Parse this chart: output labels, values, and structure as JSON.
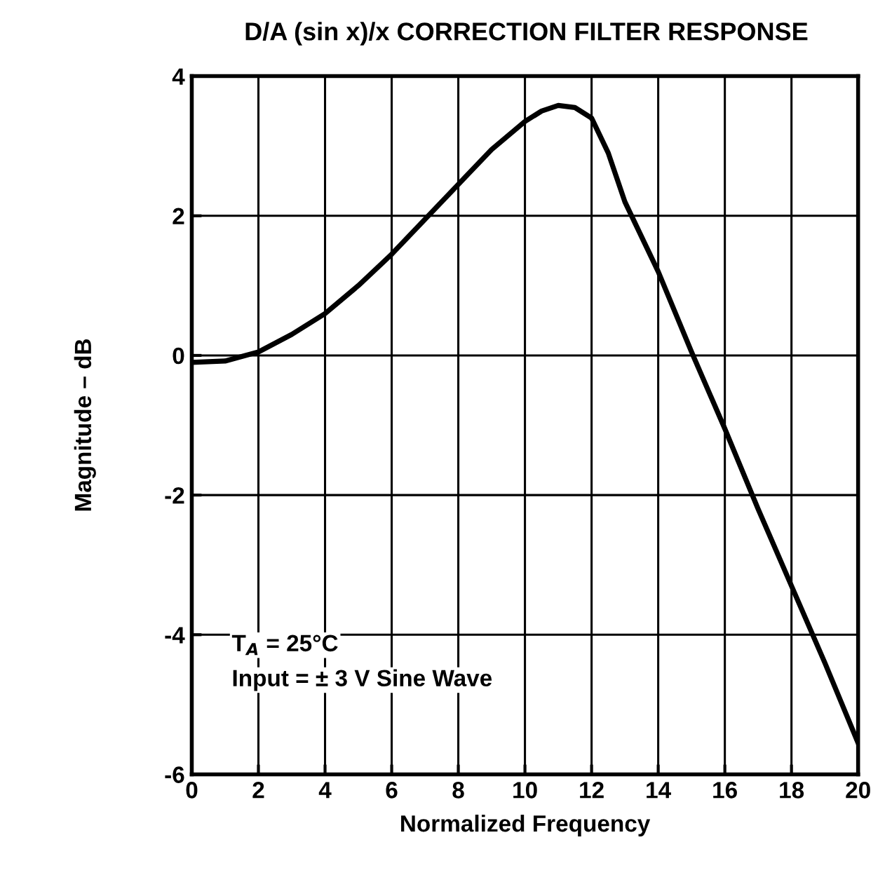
{
  "chart_data": {
    "type": "line",
    "title": "D/A (sin x)/x CORRECTION FILTER RESPONSE",
    "xlabel": "Normalized Frequency",
    "ylabel": "Magnitude – dB",
    "x": [
      0,
      1,
      2,
      3,
      4,
      5,
      6,
      7,
      8,
      9,
      10,
      10.5,
      11,
      11.5,
      12,
      12.5,
      13,
      14,
      15,
      16,
      17,
      18,
      19,
      20
    ],
    "series": [
      {
        "color": "#000000",
        "values": [
          -0.1,
          -0.08,
          0.05,
          0.3,
          0.6,
          1.0,
          1.45,
          1.95,
          2.45,
          2.95,
          3.35,
          3.5,
          3.58,
          3.55,
          3.4,
          2.9,
          2.2,
          1.2,
          0.05,
          -1.05,
          -2.2,
          -3.3,
          -4.4,
          -5.55
        ]
      }
    ],
    "xlim": [
      0,
      20
    ],
    "xticks": [
      0,
      2,
      4,
      6,
      8,
      10,
      12,
      14,
      16,
      18,
      20
    ],
    "ylim": [
      -6,
      4
    ],
    "yticks": [
      -6,
      -4,
      -2,
      0,
      2,
      4
    ],
    "grid": true,
    "marker": "none",
    "line_style": "solid",
    "annotations": [
      "T$_{A}$ = 25°C",
      "Input = ± 3 V Sine Wave"
    ]
  }
}
